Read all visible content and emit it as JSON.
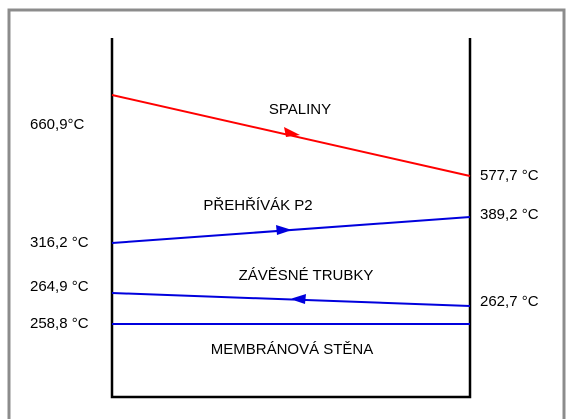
{
  "streams": [
    {
      "name": "SPALINY",
      "left": "660,9°C",
      "right": "577,7 °C"
    },
    {
      "name": "PŘEHŘÍVÁK P2",
      "left": "316,2 °C",
      "right": "389,2 °C"
    },
    {
      "name": "ZÁVĚSNÉ TRUBKY",
      "left": "264,9 °C",
      "right": "262,7 °C"
    },
    {
      "name": "MEMBRÁNOVÁ STĚNA",
      "left": "258,8 °C"
    }
  ]
}
